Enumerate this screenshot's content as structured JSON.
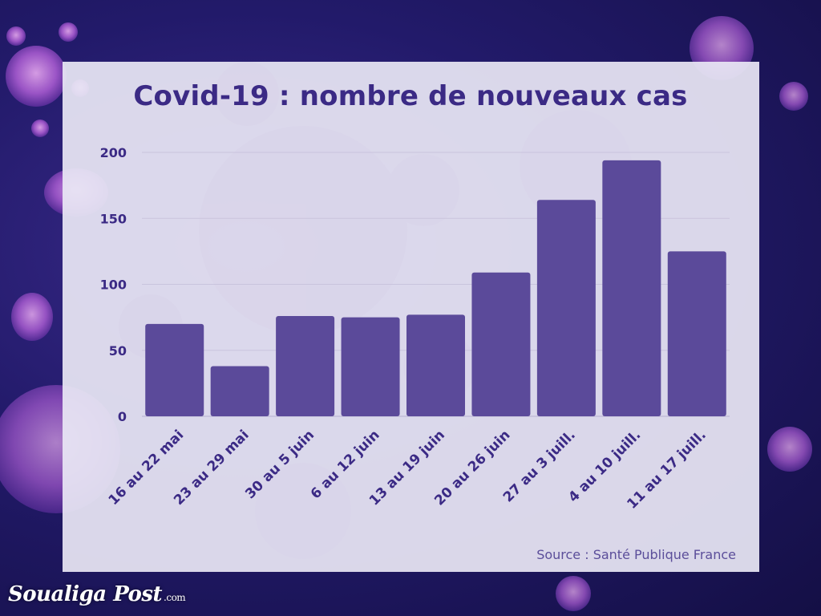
{
  "header": {
    "title": "Covid-19 : nombre de nouveaux cas"
  },
  "footer": {
    "source": "Source : Santé Publique France"
  },
  "brand": {
    "name": "Soualiga Post",
    "suffix": ".com"
  },
  "colors": {
    "bar": "#5b4a9a",
    "title": "#3b2a85",
    "axis_text": "#3b2a85",
    "grid": "#c9c4dd"
  },
  "chart_data": {
    "type": "bar",
    "title": "Covid-19 : nombre de nouveaux cas",
    "xlabel": "",
    "ylabel": "",
    "categories": [
      "16 au 22 mai",
      "23 au 29 mai",
      "30 au 5 juin",
      "6 au 12 juin",
      "13 au 19 juin",
      "20 au 26 juin",
      "27 au 3 juill.",
      "4 au 10 juill.",
      "11 au 17 juill."
    ],
    "values": [
      70,
      38,
      76,
      75,
      77,
      109,
      164,
      194,
      125
    ],
    "yticks": [
      0,
      50,
      100,
      150,
      200
    ],
    "ylim": [
      0,
      200
    ],
    "grid": true,
    "legend": "none"
  }
}
